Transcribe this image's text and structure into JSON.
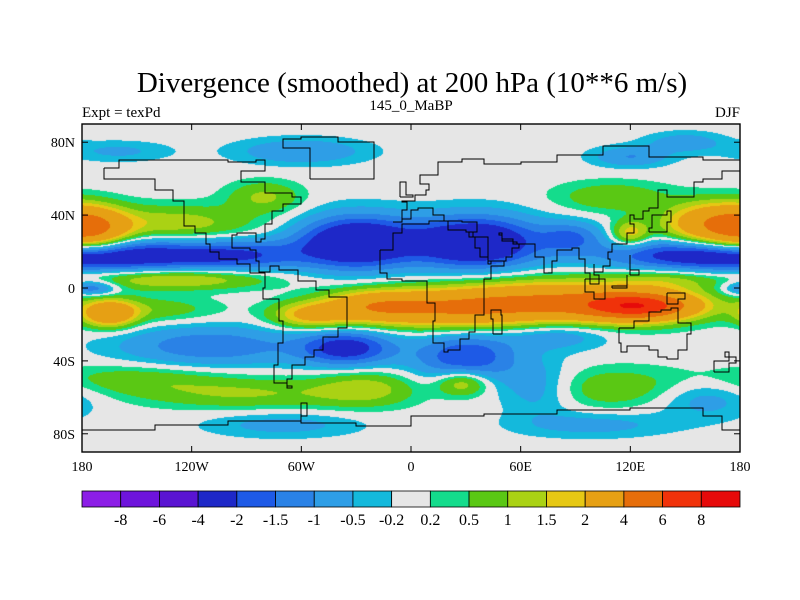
{
  "chart_data": {
    "type": "heatmap",
    "title": "Divergence (smoothed) at 200 hPa (10**6 m/s)",
    "left_string": "Expt = texPd",
    "center_string": "145_0_MaBP",
    "right_string": "DJF",
    "x_ticks": [
      {
        "value": -180,
        "label": "180"
      },
      {
        "value": -120,
        "label": "120W"
      },
      {
        "value": -60,
        "label": "60W"
      },
      {
        "value": 0,
        "label": "0"
      },
      {
        "value": 60,
        "label": "60E"
      },
      {
        "value": 120,
        "label": "120E"
      },
      {
        "value": 180,
        "label": "180"
      }
    ],
    "y_ticks": [
      {
        "value": 80,
        "label": "80N"
      },
      {
        "value": 40,
        "label": "40N"
      },
      {
        "value": 0,
        "label": "0"
      },
      {
        "value": -40,
        "label": "40S"
      },
      {
        "value": -80,
        "label": "80S"
      }
    ],
    "xlim": [
      -180,
      180
    ],
    "ylim": [
      -90,
      90
    ],
    "levels": [
      "-8",
      "-6",
      "-4",
      "-2",
      "-1.5",
      "-1",
      "-0.5",
      "-0.2",
      "0.2",
      "0.5",
      "1",
      "1.5",
      "2",
      "4",
      "6",
      "8"
    ],
    "colors": [
      "#8c1ee6",
      "#6e14dc",
      "#5a14d2",
      "#1e28c8",
      "#1e5ae6",
      "#2a82e6",
      "#2e9ee6",
      "#14b9dc",
      "#e6e6e6",
      "#14dc8c",
      "#5ac814",
      "#aad214",
      "#e6c814",
      "#e6a014",
      "#e66e0a",
      "#f0320a",
      "#e60a0a"
    ],
    "features": [
      {
        "lon": -175,
        "lat": 32,
        "val": 3.6,
        "sx": 14,
        "sy": 8
      },
      {
        "lon": -130,
        "lat": 35,
        "val": 1.4,
        "sx": 30,
        "sy": 7
      },
      {
        "lon": -80,
        "lat": 50,
        "val": 1.1,
        "sx": 14,
        "sy": 6
      },
      {
        "lon": 165,
        "lat": 35,
        "val": 3.4,
        "sx": 18,
        "sy": 8
      },
      {
        "lon": 110,
        "lat": 50,
        "val": 0.9,
        "sx": 22,
        "sy": 6
      },
      {
        "lon": 88,
        "lat": 28,
        "val": -1.3,
        "sx": 12,
        "sy": 6
      },
      {
        "lon": 120,
        "lat": 30,
        "val": 1.8,
        "sx": 7,
        "sy": 5
      },
      {
        "lon": -150,
        "lat": 18,
        "val": -2.3,
        "sx": 40,
        "sy": 7
      },
      {
        "lon": -30,
        "lat": 25,
        "val": -3.4,
        "sx": 22,
        "sy": 10
      },
      {
        "lon": 35,
        "lat": 25,
        "val": -3.4,
        "sx": 25,
        "sy": 10
      },
      {
        "lon": 150,
        "lat": 18,
        "val": -2.0,
        "sx": 35,
        "sy": 6
      },
      {
        "lon": -90,
        "lat": 18,
        "val": -1.4,
        "sx": 25,
        "sy": 6
      },
      {
        "lon": -130,
        "lat": 5,
        "val": 1.8,
        "sx": 35,
        "sy": 4
      },
      {
        "lon": 140,
        "lat": 5,
        "val": 0.9,
        "sx": 20,
        "sy": 4
      },
      {
        "lon": -175,
        "lat": 0,
        "val": -1.7,
        "sx": 10,
        "sy": 3
      },
      {
        "lon": -165,
        "lat": -14,
        "val": 3.3,
        "sx": 10,
        "sy": 5
      },
      {
        "lon": -140,
        "lat": -12,
        "val": 0.8,
        "sx": 25,
        "sy": 5
      },
      {
        "lon": 80,
        "lat": -8,
        "val": 4.2,
        "sx": 45,
        "sy": 8
      },
      {
        "lon": 125,
        "lat": -10,
        "val": 5.7,
        "sx": 20,
        "sy": 5
      },
      {
        "lon": 20,
        "lat": -12,
        "val": 2.6,
        "sx": 30,
        "sy": 7
      },
      {
        "lon": -20,
        "lat": -10,
        "val": 2.8,
        "sx": 20,
        "sy": 6
      },
      {
        "lon": -55,
        "lat": -15,
        "val": 2.2,
        "sx": 15,
        "sy": 5
      },
      {
        "lon": -110,
        "lat": -32,
        "val": -1.4,
        "sx": 35,
        "sy": 8
      },
      {
        "lon": -35,
        "lat": -33,
        "val": -2.4,
        "sx": 18,
        "sy": 7
      },
      {
        "lon": 30,
        "lat": -38,
        "val": -2.0,
        "sx": 20,
        "sy": 10
      },
      {
        "lon": 80,
        "lat": -25,
        "val": -1.0,
        "sx": 20,
        "sy": 6
      },
      {
        "lon": -150,
        "lat": -50,
        "val": 0.8,
        "sx": 35,
        "sy": 6
      },
      {
        "lon": -90,
        "lat": -58,
        "val": 1.0,
        "sx": 40,
        "sy": 6
      },
      {
        "lon": -25,
        "lat": -55,
        "val": 1.2,
        "sx": 20,
        "sy": 7
      },
      {
        "lon": 28,
        "lat": -52,
        "val": 1.7,
        "sx": 10,
        "sy": 5
      },
      {
        "lon": 70,
        "lat": -55,
        "val": -1.0,
        "sx": 15,
        "sy": 10
      },
      {
        "lon": 110,
        "lat": -55,
        "val": 0.9,
        "sx": 35,
        "sy": 8
      },
      {
        "lon": 160,
        "lat": -60,
        "val": -0.9,
        "sx": 20,
        "sy": 8
      },
      {
        "lon": -70,
        "lat": -75,
        "val": -0.7,
        "sx": 30,
        "sy": 5
      },
      {
        "lon": 100,
        "lat": -75,
        "val": -0.7,
        "sx": 30,
        "sy": 5
      },
      {
        "lon": -60,
        "lat": 75,
        "val": -1.0,
        "sx": 25,
        "sy": 5
      },
      {
        "lon": 120,
        "lat": 72,
        "val": -1.0,
        "sx": 15,
        "sy": 4
      },
      {
        "lon": 150,
        "lat": 80,
        "val": -0.8,
        "sx": 15,
        "sy": 4
      },
      {
        "lon": -160,
        "lat": 75,
        "val": -0.6,
        "sx": 20,
        "sy": 4
      }
    ],
    "coastlines": [
      [
        [
          -168,
          66
        ],
        [
          -160,
          70
        ],
        [
          -140,
          70
        ],
        [
          -128,
          70
        ],
        [
          -100,
          69
        ],
        [
          -85,
          70
        ],
        [
          -80,
          64
        ],
        [
          -93,
          58
        ],
        [
          -80,
          52
        ],
        [
          -65,
          50
        ],
        [
          -60,
          46
        ],
        [
          -70,
          42
        ],
        [
          -76,
          35
        ],
        [
          -80,
          27
        ],
        [
          -82,
          25
        ],
        [
          -85,
          30
        ],
        [
          -95,
          29
        ],
        [
          -98,
          22
        ],
        [
          -88,
          21
        ],
        [
          -85,
          15
        ],
        [
          -83,
          9
        ],
        [
          -79,
          9
        ],
        [
          -80,
          0
        ],
        [
          -81,
          -6
        ],
        [
          -72,
          -18
        ],
        [
          -70,
          -30
        ],
        [
          -73,
          -42
        ],
        [
          -75,
          -52
        ],
        [
          -68,
          -55
        ],
        [
          -65,
          -54
        ],
        [
          -68,
          -50
        ],
        [
          -65,
          -42
        ],
        [
          -58,
          -38
        ],
        [
          -53,
          -34
        ],
        [
          -48,
          -27
        ],
        [
          -40,
          -22
        ],
        [
          -35,
          -10
        ],
        [
          -35,
          -5
        ],
        [
          -45,
          -1
        ],
        [
          -52,
          4
        ],
        [
          -62,
          10
        ],
        [
          -72,
          12
        ],
        [
          -77,
          9
        ],
        [
          -80,
          8
        ],
        [
          -88,
          13
        ],
        [
          -95,
          16
        ],
        [
          -105,
          20
        ],
        [
          -110,
          24
        ],
        [
          -112,
          30
        ],
        [
          -118,
          34
        ],
        [
          -124,
          40
        ],
        [
          -124,
          48
        ],
        [
          -130,
          54
        ],
        [
          -140,
          60
        ],
        [
          -152,
          60
        ],
        [
          -165,
          60
        ],
        [
          -168,
          66
        ]
      ],
      [
        [
          -10,
          36
        ],
        [
          -5,
          43
        ],
        [
          -2,
          47
        ],
        [
          -5,
          48
        ],
        [
          2,
          51
        ],
        [
          8,
          54
        ],
        [
          10,
          57
        ],
        [
          5,
          62
        ],
        [
          15,
          69
        ],
        [
          28,
          71
        ],
        [
          40,
          68
        ],
        [
          60,
          69
        ],
        [
          80,
          73
        ],
        [
          105,
          78
        ],
        [
          130,
          72
        ],
        [
          160,
          70
        ],
        [
          180,
          68
        ],
        [
          180,
          64
        ],
        [
          170,
          60
        ],
        [
          160,
          58
        ],
        [
          155,
          50
        ],
        [
          140,
          54
        ],
        [
          135,
          44
        ],
        [
          130,
          42
        ],
        [
          127,
          38
        ],
        [
          122,
          40
        ],
        [
          120,
          35
        ],
        [
          122,
          30
        ],
        [
          118,
          24
        ],
        [
          110,
          20
        ],
        [
          108,
          16
        ],
        [
          109,
          12
        ],
        [
          105,
          9
        ],
        [
          100,
          13
        ],
        [
          100,
          7
        ],
        [
          103,
          2
        ],
        [
          98,
          8
        ],
        [
          95,
          16
        ],
        [
          92,
          22
        ],
        [
          88,
          21
        ],
        [
          80,
          15
        ],
        [
          77,
          8
        ],
        [
          73,
          17
        ],
        [
          68,
          24
        ],
        [
          58,
          25
        ],
        [
          56,
          27
        ],
        [
          50,
          30
        ],
        [
          48,
          29
        ],
        [
          50,
          26
        ],
        [
          56,
          24
        ],
        [
          59,
          22
        ],
        [
          55,
          17
        ],
        [
          52,
          15
        ],
        [
          44,
          13
        ],
        [
          42,
          17
        ],
        [
          38,
          22
        ],
        [
          35,
          28
        ],
        [
          32,
          31
        ],
        [
          36,
          36
        ],
        [
          28,
          37
        ],
        [
          22,
          37
        ],
        [
          18,
          40
        ],
        [
          12,
          44
        ],
        [
          10,
          44
        ],
        [
          4,
          43
        ],
        [
          0,
          38
        ],
        [
          -5,
          36
        ],
        [
          -10,
          36
        ]
      ],
      [
        [
          -17,
          21
        ],
        [
          -10,
          30
        ],
        [
          -5,
          35
        ],
        [
          10,
          37
        ],
        [
          20,
          32
        ],
        [
          30,
          31
        ],
        [
          34,
          28
        ],
        [
          42,
          15
        ],
        [
          51,
          12
        ],
        [
          44,
          5
        ],
        [
          40,
          -3
        ],
        [
          40,
          -15
        ],
        [
          35,
          -24
        ],
        [
          32,
          -28
        ],
        [
          27,
          -34
        ],
        [
          20,
          -35
        ],
        [
          18,
          -30
        ],
        [
          12,
          -18
        ],
        [
          13,
          -8
        ],
        [
          9,
          -1
        ],
        [
          9,
          4
        ],
        [
          -5,
          5
        ],
        [
          -13,
          8
        ],
        [
          -17,
          15
        ],
        [
          -17,
          21
        ]
      ],
      [
        [
          114,
          -22
        ],
        [
          122,
          -18
        ],
        [
          130,
          -13
        ],
        [
          137,
          -12
        ],
        [
          142,
          -11
        ],
        [
          146,
          -19
        ],
        [
          153,
          -25
        ],
        [
          151,
          -34
        ],
        [
          146,
          -39
        ],
        [
          140,
          -38
        ],
        [
          135,
          -34
        ],
        [
          130,
          -32
        ],
        [
          118,
          -35
        ],
        [
          115,
          -30
        ],
        [
          114,
          -22
        ]
      ],
      [
        [
          -180,
          -78
        ],
        [
          -140,
          -75
        ],
        [
          -100,
          -73
        ],
        [
          -60,
          -70
        ],
        [
          -57,
          -63
        ],
        [
          -60,
          -74
        ],
        [
          -30,
          -76
        ],
        [
          0,
          -70
        ],
        [
          40,
          -69
        ],
        [
          80,
          -67
        ],
        [
          120,
          -66
        ],
        [
          160,
          -70
        ],
        [
          170,
          -78
        ],
        [
          180,
          -78
        ]
      ],
      [
        [
          -55,
          60
        ],
        [
          -45,
          60
        ],
        [
          -20,
          70
        ],
        [
          -20,
          80
        ],
        [
          -40,
          83
        ],
        [
          -60,
          82
        ],
        [
          -70,
          77
        ],
        [
          -55,
          60
        ]
      ],
      [
        [
          45,
          -25
        ],
        [
          50,
          -15
        ],
        [
          49,
          -12
        ],
        [
          44,
          -17
        ],
        [
          45,
          -25
        ]
      ],
      [
        [
          -6,
          50
        ],
        [
          1,
          51
        ],
        [
          -3,
          58
        ],
        [
          -6,
          56
        ],
        [
          -6,
          50
        ]
      ],
      [
        [
          130,
          31
        ],
        [
          140,
          36
        ],
        [
          142,
          42
        ],
        [
          140,
          40
        ],
        [
          132,
          33
        ],
        [
          130,
          31
        ]
      ],
      [
        [
          95,
          5
        ],
        [
          106,
          -6
        ],
        [
          100,
          -2
        ],
        [
          95,
          5
        ]
      ],
      [
        [
          110,
          0
        ],
        [
          118,
          7
        ],
        [
          118,
          1
        ],
        [
          110,
          0
        ]
      ],
      [
        [
          140,
          -3
        ],
        [
          150,
          -6
        ],
        [
          146,
          -9
        ],
        [
          140,
          -3
        ]
      ],
      [
        [
          166,
          -46
        ],
        [
          174,
          -41
        ],
        [
          178,
          -38
        ],
        [
          172,
          -35
        ],
        [
          174,
          -40
        ],
        [
          166,
          -46
        ]
      ],
      [
        [
          120,
          7
        ],
        [
          125,
          10
        ],
        [
          120,
          18
        ],
        [
          120,
          7
        ]
      ]
    ]
  }
}
